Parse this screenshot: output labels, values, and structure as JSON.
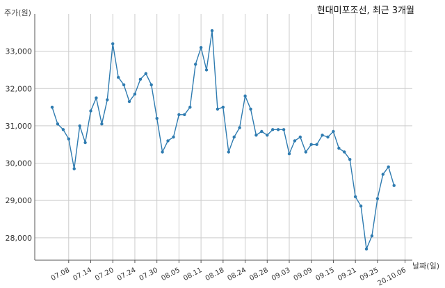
{
  "chart_data": {
    "type": "line",
    "title": "현대미포조선, 최근 3개월",
    "xlabel": "날짜(일)",
    "ylabel": "주가(원)",
    "ylim": [
      27400,
      34000
    ],
    "yticks": [
      28000,
      29000,
      30000,
      31000,
      32000,
      33000
    ],
    "ytick_labels": [
      "28,000",
      "29,000",
      "30,000",
      "31,000",
      "32,000",
      "33,000"
    ],
    "xtick_labels": [
      "07.08",
      "07.14",
      "07.20",
      "07.24",
      "07.30",
      "08.05",
      "08.11",
      "08.18",
      "08.24",
      "08.28",
      "09.03",
      "09.09",
      "09.15",
      "09.21",
      "09.25",
      "20.10.06"
    ],
    "xtick_index": [
      3,
      7,
      11,
      15,
      19,
      23,
      27,
      31,
      35,
      39,
      43,
      47,
      51,
      55,
      59,
      64
    ],
    "grid": true,
    "line_color": "#2e7bb0",
    "series": [
      {
        "values": [
          31500,
          31050,
          30900,
          30650,
          29850,
          31000,
          30550,
          31400,
          31750,
          31050,
          31700,
          33200,
          32300,
          32100,
          31650,
          31850,
          32250,
          32400,
          32100,
          31200,
          30300,
          30600,
          30700,
          31300,
          31300,
          31500,
          32650,
          33100,
          32500,
          33550,
          31450,
          31500,
          30300,
          30700,
          30950,
          31800,
          31450,
          30750,
          30850,
          30750,
          30900,
          30900,
          30900,
          30250,
          30600,
          30700,
          30300,
          30500,
          30500,
          30750,
          30700,
          30850,
          30400,
          30300,
          30100,
          29100,
          28850,
          27700,
          28050,
          29050,
          29700,
          29900,
          29400
        ]
      }
    ]
  }
}
